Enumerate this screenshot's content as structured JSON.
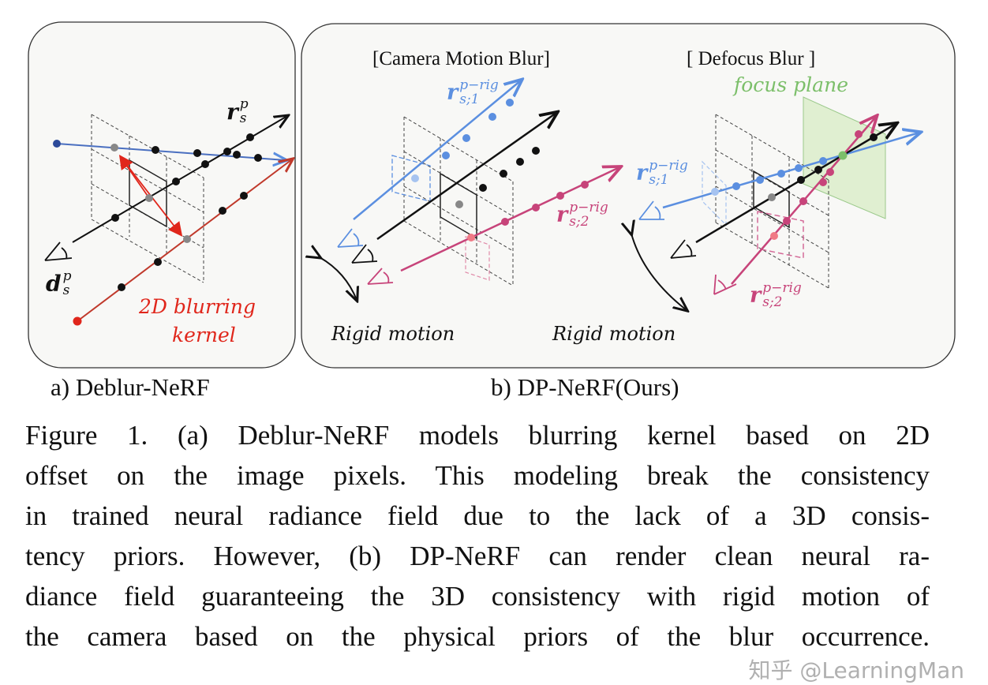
{
  "panel_a": {
    "caption": "a) Deblur-NeRF",
    "ray_label": "r",
    "ray_label_sup": "p",
    "ray_label_sub": "s",
    "dir_label": "d",
    "dir_label_sup": "p",
    "dir_label_sub": "s",
    "kernel_line1": "2D  blurring",
    "kernel_line2": "kernel"
  },
  "panel_b": {
    "caption": "b) DP-NeRF(Ours)",
    "camera_motion_title": "[Camera Motion Blur]",
    "defocus_title": "[ Defocus Blur ]",
    "focus_plane": "focus plane",
    "rigid_motion_left": "Rigid motion",
    "rigid_motion_right": "Rigid motion",
    "ray_sup": "p−rig",
    "ray1_sub": "s;1",
    "ray2_sub": "s;2"
  },
  "colors": {
    "blue": "#5b8fe0",
    "pink": "#c7447a",
    "red": "#e0261b",
    "green": "#7cbf6a"
  },
  "caption": {
    "lines": [
      "Figure 1.  (a) Deblur-NeRF models blurring kernel based on 2D",
      "offset on the image pixels.  This modeling break the consistency",
      "in trained neural radiance field due to the lack of a 3D consis-",
      "tency priors.  However, (b) DP-NeRF can render clean neural ra-",
      "diance field guaranteeing the 3D consistency with rigid motion of",
      "the camera based on the physical priors of the blur occurrence."
    ]
  },
  "watermark": "知乎 @LearningMan"
}
